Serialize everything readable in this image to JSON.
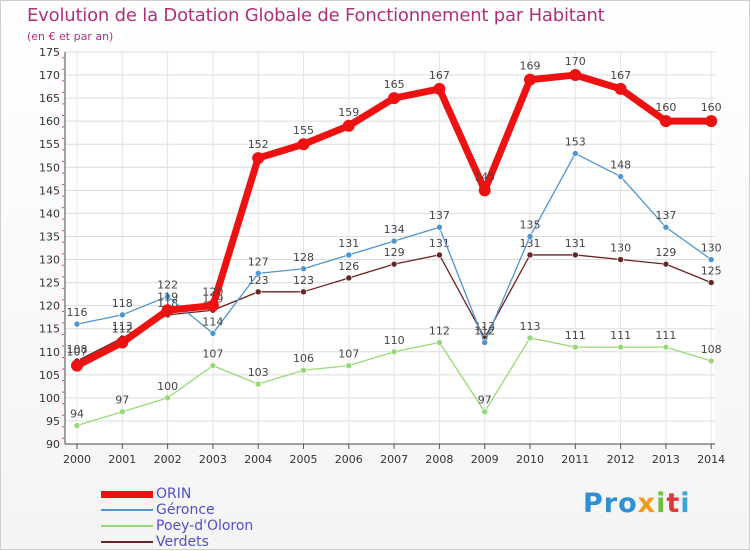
{
  "title": "Evolution de la Dotation Globale de Fonctionnement par Habitant",
  "subtitle": "(en € et par an)",
  "brand": {
    "p1": "Pro",
    "p2": "x",
    "p3": "i",
    "p4": "t",
    "p5": "i"
  },
  "chart_data": {
    "type": "line",
    "categories": [
      "2000",
      "2001",
      "2002",
      "2003",
      "2004",
      "2005",
      "2006",
      "2007",
      "2008",
      "2009",
      "2010",
      "2011",
      "2012",
      "2013",
      "2014"
    ],
    "ylim": [
      90,
      175
    ],
    "ytick_step": 5,
    "series": [
      {
        "name": "ORIN",
        "color": "#ee1111",
        "values": [
          107,
          112,
          119,
          120,
          152,
          155,
          159,
          165,
          167,
          145,
          169,
          170,
          167,
          160,
          160
        ]
      },
      {
        "name": "Géronce",
        "color": "#4f95cf",
        "values": [
          116,
          118,
          122,
          114,
          127,
          128,
          131,
          134,
          137,
          112,
          135,
          153,
          148,
          137,
          130
        ]
      },
      {
        "name": "Poey-d'Oloron",
        "color": "#98d977",
        "values": [
          94,
          97,
          100,
          107,
          103,
          106,
          107,
          110,
          112,
          97,
          113,
          111,
          111,
          111,
          108
        ]
      },
      {
        "name": "Verdets",
        "color": "#6b2323",
        "values": [
          108,
          113,
          118,
          119,
          123,
          123,
          126,
          129,
          131,
          113,
          131,
          131,
          130,
          129,
          125
        ]
      }
    ]
  }
}
